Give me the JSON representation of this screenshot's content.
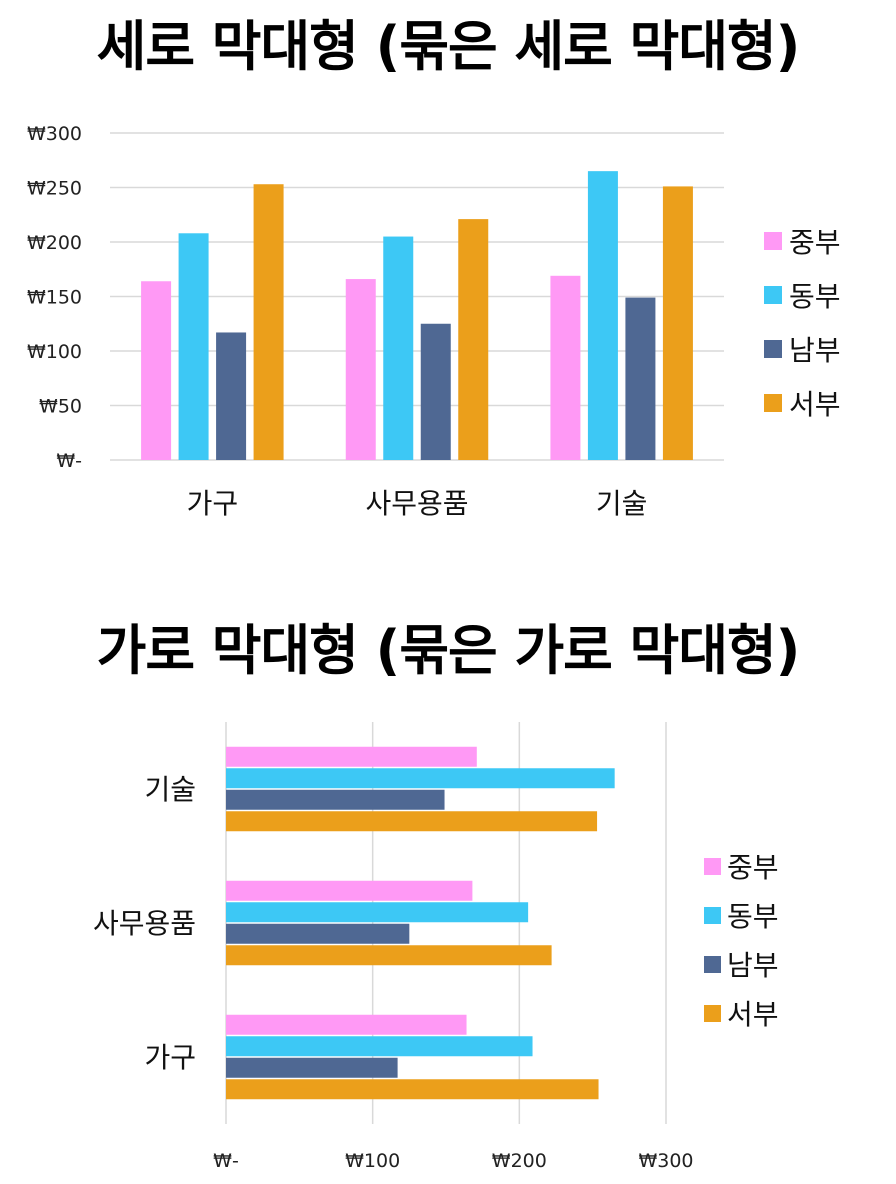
{
  "colors": {
    "중부": "#ff99f5",
    "동부": "#3dc8f5",
    "남부": "#4f6893",
    "서부": "#eb9f1b",
    "grid": "#d9d9d9"
  },
  "chart_data": [
    {
      "type": "bar",
      "orientation": "vertical",
      "title": "세로 막대형 (묶은 세로 막대형)",
      "categories": [
        "가구",
        "사무용품",
        "기술"
      ],
      "series": [
        {
          "name": "중부",
          "values": [
            164,
            166,
            169
          ]
        },
        {
          "name": "동부",
          "values": [
            208,
            205,
            265
          ]
        },
        {
          "name": "남부",
          "values": [
            117,
            125,
            149
          ]
        },
        {
          "name": "서부",
          "values": [
            253,
            221,
            251
          ]
        }
      ],
      "ylim": [
        0,
        300
      ],
      "yticks": [
        0,
        50,
        100,
        150,
        200,
        250,
        300
      ],
      "ytick_labels": [
        "₩-",
        "₩50",
        "₩100",
        "₩150",
        "₩200",
        "₩250",
        "₩300"
      ],
      "grid": true,
      "legend": "right"
    },
    {
      "type": "bar",
      "orientation": "horizontal",
      "title": "가로 막대형 (묶은 가로 막대형)",
      "categories": [
        "가구",
        "사무용품",
        "기술"
      ],
      "series": [
        {
          "name": "중부",
          "values": [
            164,
            168,
            171
          ]
        },
        {
          "name": "동부",
          "values": [
            209,
            206,
            265
          ]
        },
        {
          "name": "남부",
          "values": [
            117,
            125,
            149
          ]
        },
        {
          "name": "서부",
          "values": [
            254,
            222,
            253
          ]
        }
      ],
      "xlim": [
        0,
        300
      ],
      "xticks": [
        0,
        100,
        200,
        300
      ],
      "xtick_labels": [
        "₩-",
        "₩100",
        "₩200",
        "₩300"
      ],
      "grid": true,
      "legend": "right"
    }
  ]
}
